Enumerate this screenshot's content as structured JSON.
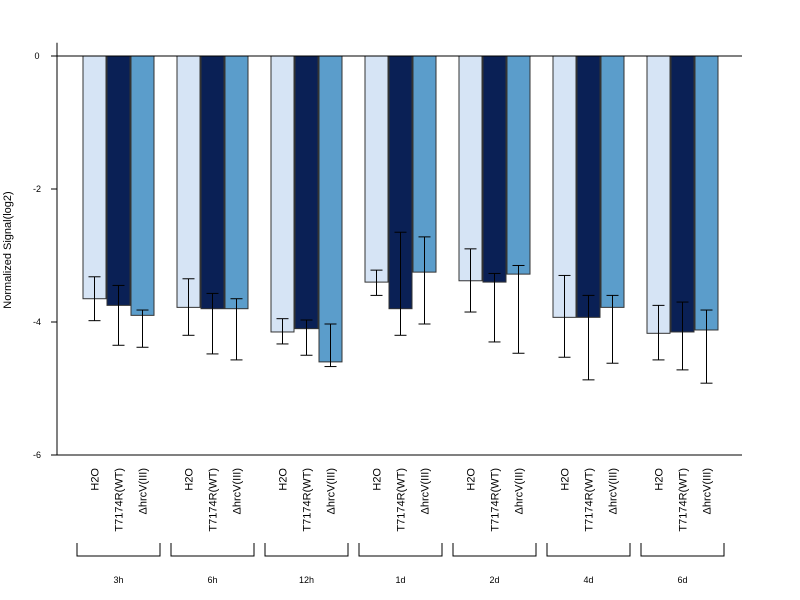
{
  "chart_data": {
    "type": "bar",
    "ylabel": "Normalized Signal(log2)",
    "ylim": [
      -6,
      0.2
    ],
    "yticks": [
      0,
      -2,
      -4,
      -6
    ],
    "bar_labels": [
      "H2O",
      "T7174R(WT)",
      "ΔhrcV(III)"
    ],
    "colors": [
      "#d6e4f5",
      "#0a2055",
      "#5b9dcb"
    ],
    "groups": [
      {
        "name": "3h",
        "values": [
          -3.65,
          -3.75,
          -3.9
        ],
        "err_low": [
          -3.98,
          -4.35,
          -4.38
        ],
        "err_high": [
          -3.32,
          -3.45,
          -3.82
        ]
      },
      {
        "name": "6h",
        "values": [
          -3.78,
          -3.8,
          -3.8
        ],
        "err_low": [
          -4.2,
          -4.48,
          -4.57
        ],
        "err_high": [
          -3.35,
          -3.57,
          -3.65
        ]
      },
      {
        "name": "12h",
        "values": [
          -4.15,
          -4.1,
          -4.6
        ],
        "err_low": [
          -4.33,
          -4.5,
          -4.67
        ],
        "err_high": [
          -3.95,
          -3.97,
          -4.03
        ]
      },
      {
        "name": "1d",
        "values": [
          -3.4,
          -3.8,
          -3.25
        ],
        "err_low": [
          -3.6,
          -4.2,
          -4.03
        ],
        "err_high": [
          -3.22,
          -2.65,
          -2.72
        ]
      },
      {
        "name": "2d",
        "values": [
          -3.38,
          -3.4,
          -3.28
        ],
        "err_low": [
          -3.85,
          -4.3,
          -4.47
        ],
        "err_high": [
          -2.9,
          -3.27,
          -3.15
        ]
      },
      {
        "name": "4d",
        "values": [
          -3.93,
          -3.93,
          -3.78
        ],
        "err_low": [
          -4.53,
          -4.87,
          -4.62
        ],
        "err_high": [
          -3.3,
          -3.6,
          -3.6
        ]
      },
      {
        "name": "6d",
        "values": [
          -4.17,
          -4.15,
          -4.12
        ],
        "err_low": [
          -4.57,
          -4.72,
          -4.92
        ],
        "err_high": [
          -3.75,
          -3.7,
          -3.82
        ]
      }
    ]
  }
}
